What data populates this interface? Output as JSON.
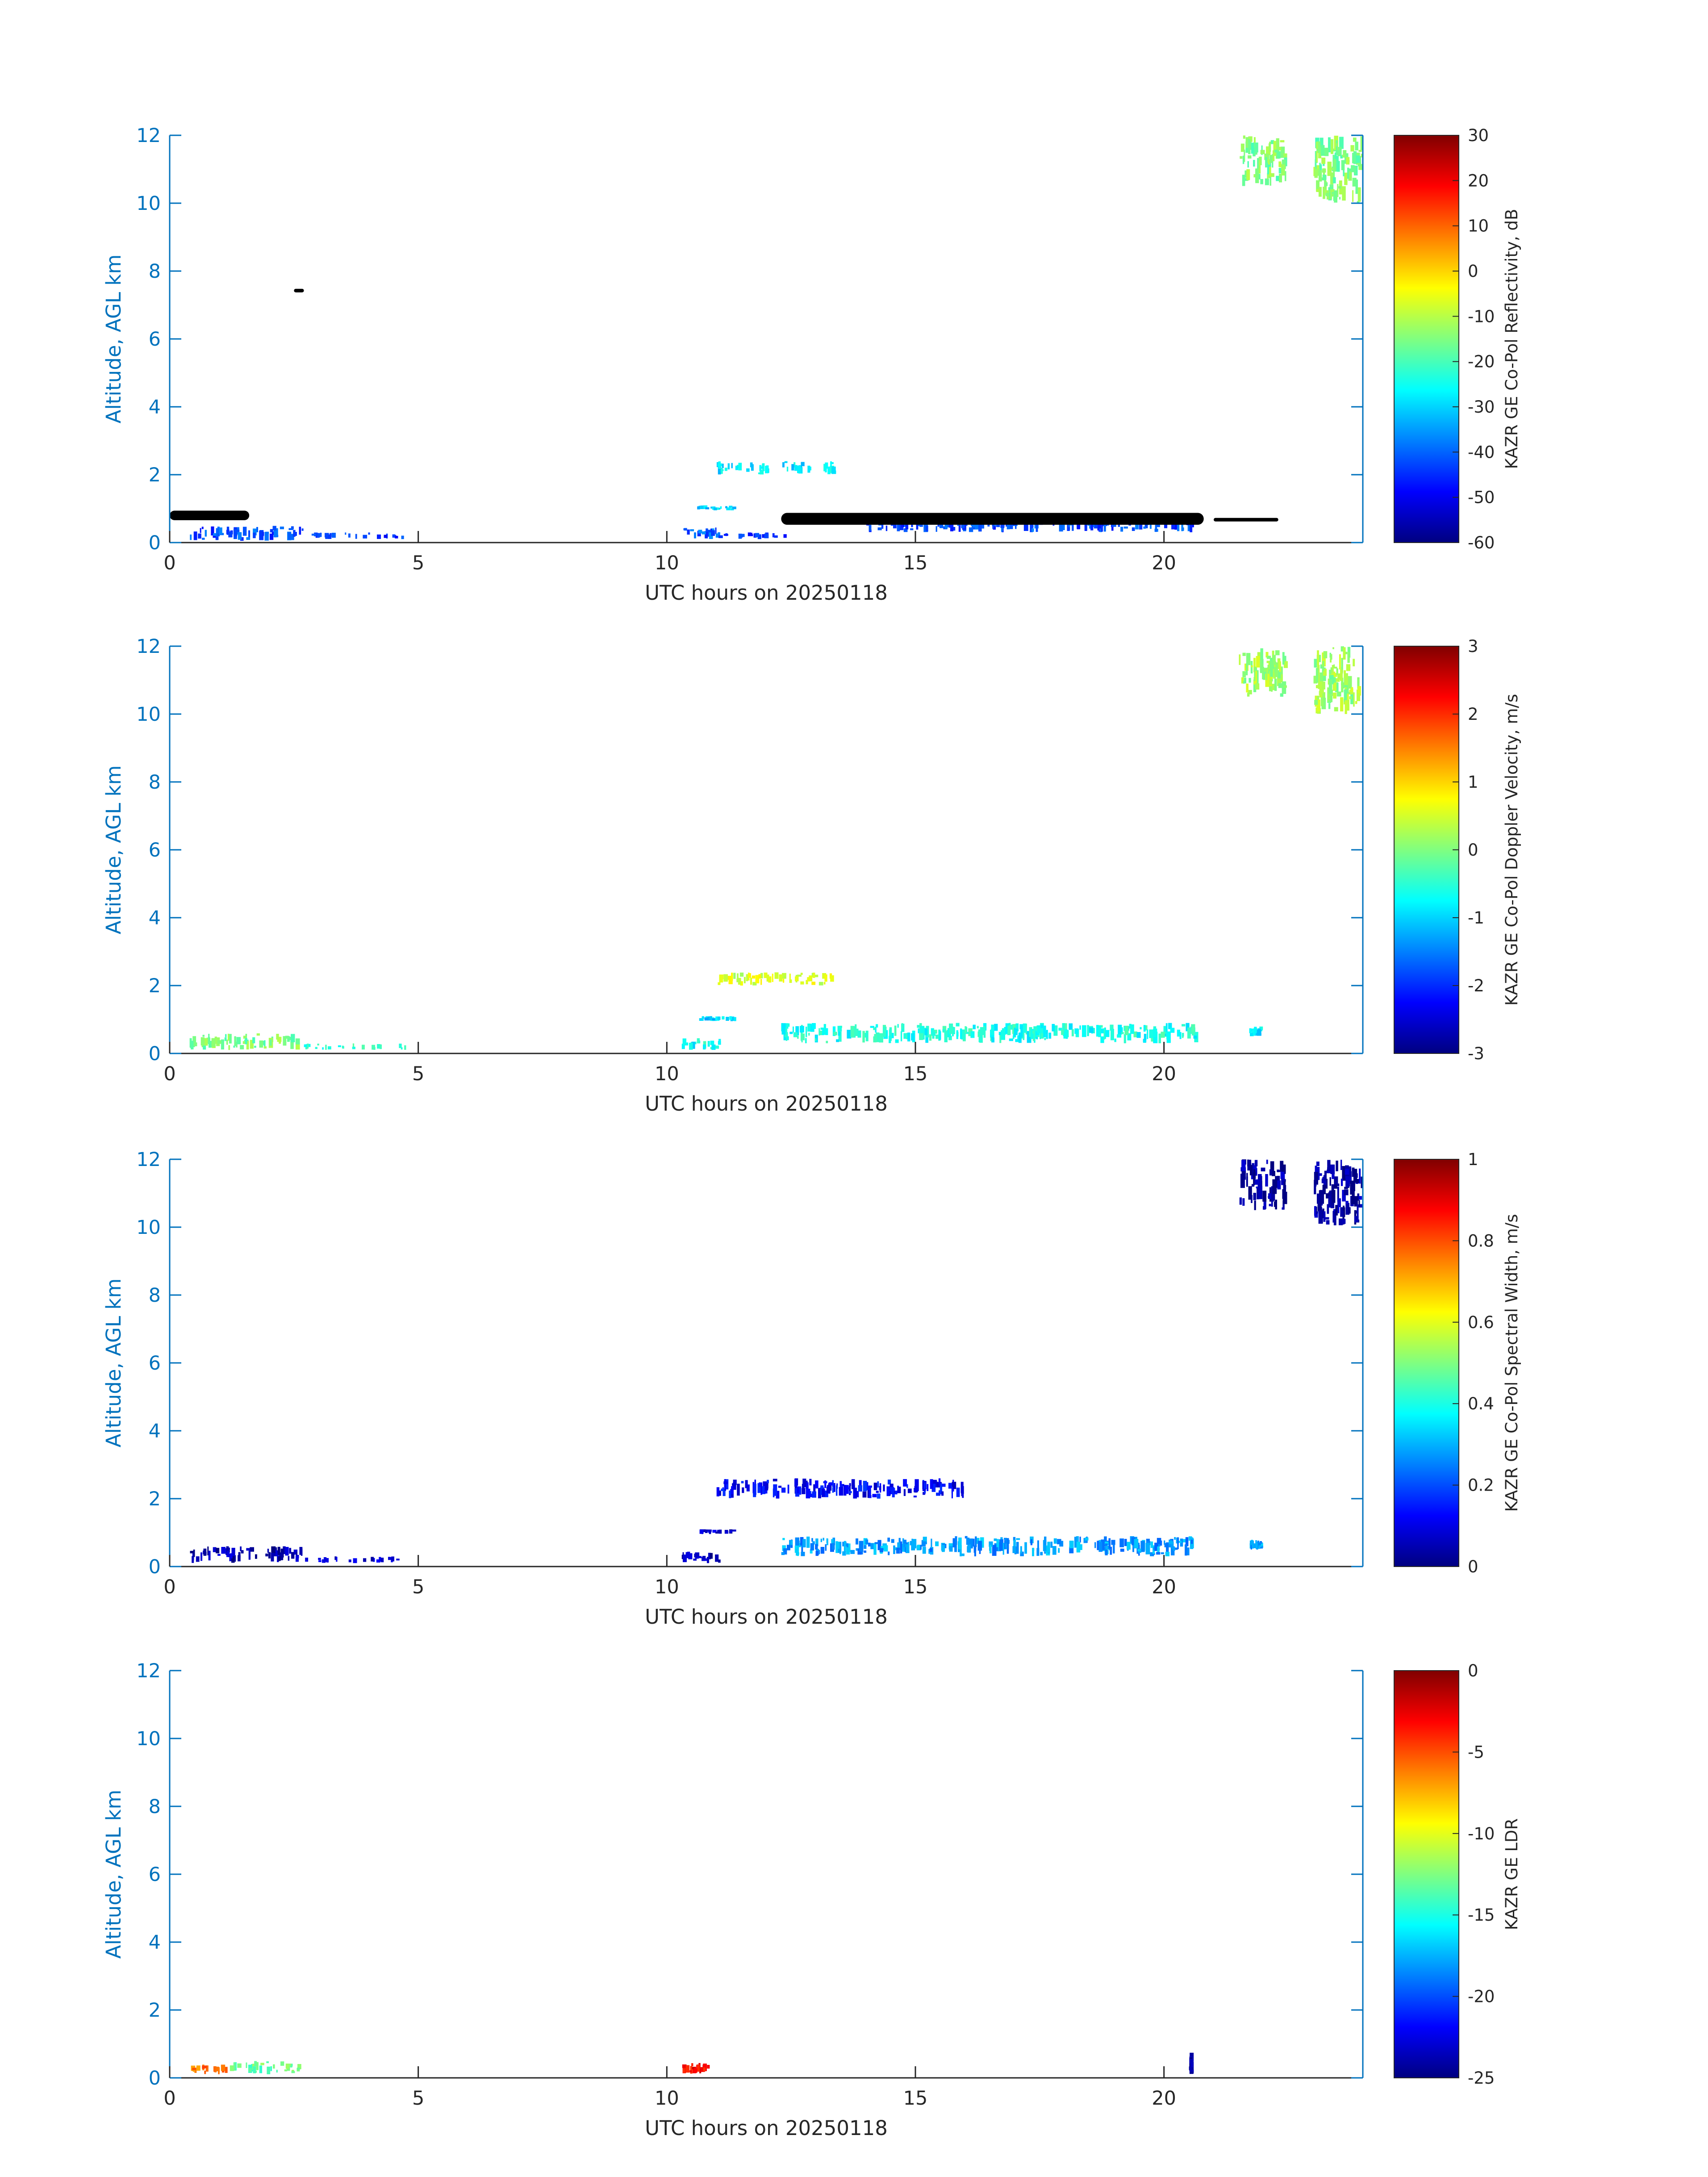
{
  "chart_data": [
    {
      "type": "heatmap",
      "panel": "reflectivity",
      "xlabel": "UTC hours on 20250118",
      "ylabel": "Altitude, AGL km",
      "xlim": [
        0,
        24
      ],
      "ylim": [
        0,
        12
      ],
      "xticks": [
        0,
        5,
        10,
        15,
        20
      ],
      "yticks": [
        0,
        2,
        4,
        6,
        8,
        10,
        12
      ],
      "colorbar": {
        "label": "KAZR GE Co-Pol Reflectivity, dB",
        "range": [
          -60,
          30
        ],
        "ticks": [
          30,
          20,
          10,
          0,
          -10,
          -20,
          -30,
          -40,
          -50,
          -60
        ],
        "colormap": "jet"
      },
      "features": [
        {
          "kind": "echo",
          "t": [
            0.4,
            2.7
          ],
          "z": [
            0.05,
            0.5
          ],
          "value": -42
        },
        {
          "kind": "echo",
          "t": [
            2.7,
            4.8
          ],
          "z": [
            0.1,
            0.3
          ],
          "value": -45
        },
        {
          "kind": "echo",
          "t": [
            10.3,
            11.1
          ],
          "z": [
            0.1,
            0.45
          ],
          "value": -40
        },
        {
          "kind": "echo",
          "t": [
            11.0,
            12.5
          ],
          "z": [
            0.1,
            0.3
          ],
          "value": -45
        },
        {
          "kind": "echo",
          "t": [
            10.6,
            11.4
          ],
          "z": [
            0.95,
            1.1
          ],
          "value": -30
        },
        {
          "kind": "echo",
          "t": [
            11.0,
            13.5
          ],
          "z": [
            2.0,
            2.4
          ],
          "value": -28
        },
        {
          "kind": "echo",
          "t": [
            14.0,
            20.7
          ],
          "z": [
            0.3,
            0.85
          ],
          "value": -42
        },
        {
          "kind": "echo",
          "t": [
            21.5,
            22.5
          ],
          "z": [
            10.5,
            12.0
          ],
          "value": -15
        },
        {
          "kind": "echo",
          "t": [
            23.0,
            24.0
          ],
          "z": [
            10.0,
            12.0
          ],
          "value": -15
        },
        {
          "kind": "black",
          "t": [
            0.0,
            1.6
          ],
          "z": [
            0.6,
            1.0
          ]
        },
        {
          "kind": "black",
          "t": [
            12.3,
            20.8
          ],
          "z": [
            0.45,
            0.95
          ]
        },
        {
          "kind": "black",
          "t": [
            2.5,
            2.7
          ],
          "z": [
            7.35,
            7.5
          ]
        },
        {
          "kind": "black",
          "t": [
            21.0,
            22.3
          ],
          "z": [
            0.6,
            0.75
          ]
        }
      ]
    },
    {
      "type": "heatmap",
      "panel": "doppler-velocity",
      "xlabel": "UTC hours on 20250118",
      "ylabel": "Altitude, AGL km",
      "xlim": [
        0,
        24
      ],
      "ylim": [
        0,
        12
      ],
      "xticks": [
        0,
        5,
        10,
        15,
        20
      ],
      "yticks": [
        0,
        2,
        4,
        6,
        8,
        10,
        12
      ],
      "colorbar": {
        "label": "KAZR GE Co-Pol Doppler Velocity, m/s",
        "range": [
          -3,
          3
        ],
        "ticks": [
          3,
          2,
          1,
          0,
          -1,
          -2,
          -3
        ],
        "colormap": "jet"
      },
      "features": [
        {
          "kind": "echo",
          "t": [
            0.4,
            2.7
          ],
          "z": [
            0.1,
            0.6
          ],
          "value": 0.0
        },
        {
          "kind": "echo",
          "t": [
            2.7,
            4.8
          ],
          "z": [
            0.1,
            0.3
          ],
          "value": -0.5
        },
        {
          "kind": "echo",
          "t": [
            10.3,
            11.1
          ],
          "z": [
            0.1,
            0.45
          ],
          "value": -0.7
        },
        {
          "kind": "echo",
          "t": [
            10.6,
            11.4
          ],
          "z": [
            0.95,
            1.1
          ],
          "value": -1.0
        },
        {
          "kind": "echo",
          "t": [
            11.0,
            13.5
          ],
          "z": [
            2.0,
            2.4
          ],
          "value": 0.5
        },
        {
          "kind": "echo",
          "t": [
            12.3,
            20.7
          ],
          "z": [
            0.3,
            0.9
          ],
          "value": -0.6
        },
        {
          "kind": "echo",
          "t": [
            21.7,
            22.0
          ],
          "z": [
            0.5,
            0.8
          ],
          "value": -0.8
        },
        {
          "kind": "echo",
          "t": [
            21.5,
            22.5
          ],
          "z": [
            10.5,
            12.0
          ],
          "value": 0.2
        },
        {
          "kind": "echo",
          "t": [
            23.0,
            24.0
          ],
          "z": [
            10.0,
            12.0
          ],
          "value": 0.2
        }
      ]
    },
    {
      "type": "heatmap",
      "panel": "spectral-width",
      "xlabel": "UTC hours on 20250118",
      "ylabel": "Altitude, AGL km",
      "xlim": [
        0,
        24
      ],
      "ylim": [
        0,
        12
      ],
      "xticks": [
        0,
        5,
        10,
        15,
        20
      ],
      "yticks": [
        0,
        2,
        4,
        6,
        8,
        10,
        12
      ],
      "colorbar": {
        "label": "KAZR GE Co-Pol Spectral Width, m/s",
        "range": [
          0,
          1
        ],
        "ticks": [
          1,
          0.8,
          0.6,
          0.4,
          0.2,
          0
        ],
        "colormap": "jet"
      },
      "features": [
        {
          "kind": "echo",
          "t": [
            0.4,
            2.7
          ],
          "z": [
            0.1,
            0.6
          ],
          "value": 0.05
        },
        {
          "kind": "echo",
          "t": [
            2.7,
            4.8
          ],
          "z": [
            0.1,
            0.3
          ],
          "value": 0.08
        },
        {
          "kind": "echo",
          "t": [
            10.3,
            11.1
          ],
          "z": [
            0.1,
            0.45
          ],
          "value": 0.05
        },
        {
          "kind": "echo",
          "t": [
            10.6,
            11.4
          ],
          "z": [
            0.95,
            1.1
          ],
          "value": 0.08
        },
        {
          "kind": "echo",
          "t": [
            11.0,
            16.0
          ],
          "z": [
            2.0,
            2.6
          ],
          "value": 0.12
        },
        {
          "kind": "echo",
          "t": [
            12.3,
            20.7
          ],
          "z": [
            0.3,
            0.9
          ],
          "value": 0.28
        },
        {
          "kind": "echo",
          "t": [
            21.7,
            22.0
          ],
          "z": [
            0.5,
            0.8
          ],
          "value": 0.28
        },
        {
          "kind": "echo",
          "t": [
            21.5,
            22.5
          ],
          "z": [
            10.5,
            12.0
          ],
          "value": 0.03
        },
        {
          "kind": "echo",
          "t": [
            23.0,
            24.0
          ],
          "z": [
            10.0,
            12.0
          ],
          "value": 0.03
        }
      ]
    },
    {
      "type": "heatmap",
      "panel": "ldr",
      "xlabel": "UTC hours on 20250118",
      "ylabel": "Altitude, AGL km",
      "xlim": [
        0,
        24
      ],
      "ylim": [
        0,
        12
      ],
      "xticks": [
        0,
        5,
        10,
        15,
        20
      ],
      "yticks": [
        0,
        2,
        4,
        6,
        8,
        10,
        12
      ],
      "colorbar": {
        "label": "KAZR GE LDR",
        "range": [
          -25,
          0
        ],
        "ticks": [
          0,
          -5,
          -10,
          -15,
          -20,
          -25
        ],
        "colormap": "jet"
      },
      "features": [
        {
          "kind": "echo",
          "t": [
            1.2,
            2.7
          ],
          "z": [
            0.1,
            0.5
          ],
          "value": -13
        },
        {
          "kind": "echo",
          "t": [
            0.4,
            1.2
          ],
          "z": [
            0.1,
            0.4
          ],
          "value": -6
        },
        {
          "kind": "echo",
          "t": [
            10.3,
            10.9
          ],
          "z": [
            0.1,
            0.45
          ],
          "value": -3
        },
        {
          "kind": "echo",
          "t": [
            20.5,
            20.6
          ],
          "z": [
            0.1,
            0.75
          ],
          "value": -24
        }
      ]
    }
  ]
}
